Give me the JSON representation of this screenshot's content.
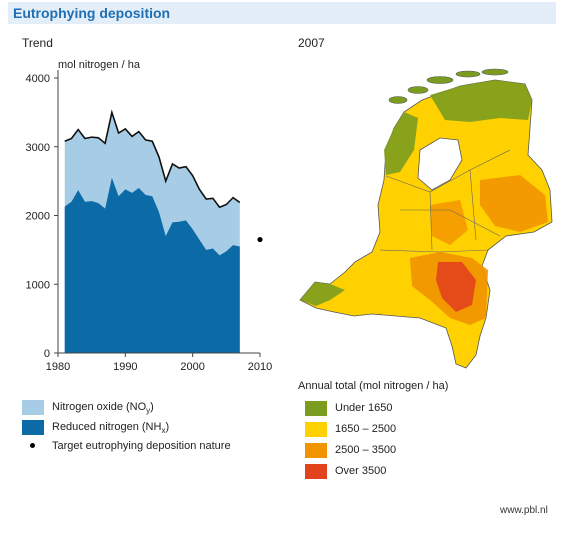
{
  "title": "Eutrophying deposition",
  "trend_title": "Trend",
  "map_title": "2007",
  "footer": "www.pbl.nl",
  "colors": {
    "nox": "#a7cde6",
    "nhx": "#0c6aa6",
    "total_line": "#111111",
    "map_green": "#7b9c1f",
    "map_yellow": "#ffd100",
    "map_orange": "#f29400",
    "map_red": "#e2421c"
  },
  "legend_left": [
    {
      "label": "Nitrogen oxide (NO",
      "sub": "y",
      "tail": ")",
      "color": "#a7cde6"
    },
    {
      "label": "Reduced nitrogen (NH",
      "sub": "x",
      "tail": ")",
      "color": "#0c6aa6"
    },
    {
      "label": "Target eutrophying deposition nature",
      "color": "#000000"
    }
  ],
  "map_legend": {
    "title": "Annual total (mol nitrogen / ha)",
    "items": [
      {
        "label": "Under 1650",
        "color": "#7b9c1f"
      },
      {
        "label": "1650 – 2500",
        "color": "#ffd100"
      },
      {
        "label": "2500 – 3500",
        "color": "#f29400"
      },
      {
        "label": "Over 3500",
        "color": "#e2421c"
      }
    ]
  },
  "chart_data": {
    "type": "area",
    "ylabel": "mol nitrogen / ha",
    "xlim": [
      1980,
      2010
    ],
    "ylim": [
      0,
      4000
    ],
    "xticks": [
      1980,
      1990,
      2000,
      2010
    ],
    "yticks": [
      0,
      1000,
      2000,
      3000,
      4000
    ],
    "x": [
      1981,
      1982,
      1983,
      1984,
      1985,
      1986,
      1987,
      1988,
      1989,
      1990,
      1991,
      1992,
      1993,
      1994,
      1995,
      1996,
      1997,
      1998,
      1999,
      2000,
      2001,
      2002,
      2003,
      2004,
      2005,
      2006,
      2007
    ],
    "series": [
      {
        "name": "Nitrogen oxide (NOy)",
        "values": [
          950,
          920,
          880,
          920,
          930,
          950,
          950,
          950,
          920,
          880,
          820,
          820,
          800,
          800,
          800,
          800,
          850,
          780,
          780,
          780,
          730,
          740,
          730,
          700,
          680,
          690,
          640
        ]
      },
      {
        "name": "Reduced nitrogen (NHx)",
        "values": [
          2130,
          2200,
          2370,
          2200,
          2210,
          2180,
          2100,
          2550,
          2280,
          2380,
          2330,
          2400,
          2300,
          2280,
          2050,
          1700,
          1900,
          1910,
          1930,
          1800,
          1650,
          1500,
          1520,
          1420,
          1480,
          1570,
          1550
        ]
      }
    ],
    "total": [
      3080,
      3120,
      3250,
      3120,
      3140,
      3130,
      3050,
      3500,
      3200,
      3260,
      3150,
      3220,
      3100,
      3080,
      2850,
      2500,
      2750,
      2690,
      2710,
      2580,
      2380,
      2240,
      2250,
      2120,
      2160,
      2260,
      2190
    ],
    "target": {
      "x": 2010,
      "y": 1650
    }
  }
}
